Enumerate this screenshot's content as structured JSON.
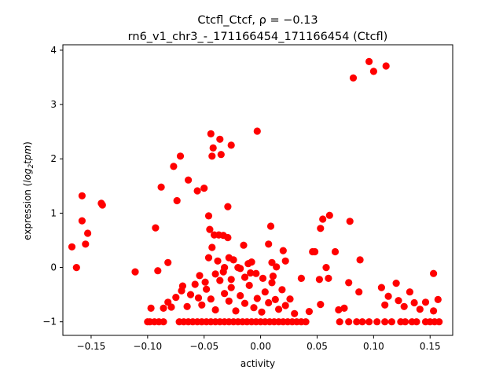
{
  "chart_data": {
    "type": "scatter",
    "title": "Ctcfl_Ctcf, ρ = −0.13",
    "subtitle": "rn6_v1_chr3_-_171166454_171166454 (Ctcfl)",
    "xlabel": "activity",
    "ylabel_prefix": "expression (",
    "ylabel_math_main": "log",
    "ylabel_math_sub": "2",
    "ylabel_math_tail": "tpm",
    "ylabel_suffix": ")",
    "xlim": [
      -0.175,
      0.17
    ],
    "ylim": [
      -1.25,
      4.1
    ],
    "xticks": [
      -0.15,
      -0.1,
      -0.05,
      0.0,
      0.05,
      0.1,
      0.15
    ],
    "xtick_labels": [
      "−0.15",
      "−0.10",
      "−0.05",
      "0.00",
      "0.05",
      "0.10",
      "0.15"
    ],
    "yticks": [
      -1,
      0,
      1,
      2,
      3,
      4
    ],
    "ytick_labels": [
      "−1",
      "0",
      "1",
      "2",
      "3",
      "4"
    ],
    "grid": false,
    "marker_color": "#ff0000",
    "points": [
      [
        -0.167,
        0.38
      ],
      [
        -0.163,
        0.0
      ],
      [
        -0.158,
        1.32
      ],
      [
        -0.158,
        0.86
      ],
      [
        -0.155,
        0.43
      ],
      [
        -0.153,
        0.63
      ],
      [
        -0.141,
        1.18
      ],
      [
        -0.14,
        1.15
      ],
      [
        -0.111,
        -0.08
      ],
      [
        -0.1,
        -1.0
      ],
      [
        -0.097,
        -0.75
      ],
      [
        -0.093,
        0.73
      ],
      [
        -0.091,
        -0.06
      ],
      [
        -0.088,
        1.48
      ],
      [
        -0.082,
        0.09
      ],
      [
        -0.077,
        1.86
      ],
      [
        -0.074,
        1.23
      ],
      [
        -0.071,
        2.05
      ],
      [
        -0.064,
        1.61
      ],
      [
        -0.056,
        1.41
      ],
      [
        -0.05,
        1.46
      ],
      [
        -0.046,
        0.95
      ],
      [
        -0.045,
        0.7
      ],
      [
        -0.043,
        2.05
      ],
      [
        -0.042,
        2.2
      ],
      [
        -0.036,
        2.36
      ],
      [
        -0.035,
        2.08
      ],
      [
        -0.044,
        2.46
      ],
      [
        -0.026,
        2.25
      ],
      [
        -0.029,
        1.12
      ],
      [
        -0.003,
        2.51
      ],
      [
        -0.041,
        0.6
      ],
      [
        -0.037,
        0.6
      ],
      [
        -0.033,
        0.59
      ],
      [
        -0.029,
        0.55
      ],
      [
        -0.02,
        0.0
      ],
      [
        -0.015,
        0.41
      ],
      [
        -0.046,
        0.18
      ],
      [
        -0.043,
        0.37
      ],
      [
        -0.038,
        0.12
      ],
      [
        -0.032,
        0.0
      ],
      [
        -0.028,
        0.18
      ],
      [
        -0.024,
        0.14
      ],
      [
        -0.018,
        -0.02
      ],
      [
        -0.011,
        0.07
      ],
      [
        -0.009,
        -0.1
      ],
      [
        -0.008,
        0.1
      ],
      [
        0.007,
        0.43
      ],
      [
        0.009,
        0.76
      ],
      [
        0.01,
        0.09
      ],
      [
        0.014,
        0.01
      ],
      [
        0.02,
        0.31
      ],
      [
        0.022,
        0.12
      ],
      [
        0.046,
        0.29
      ],
      [
        0.048,
        0.29
      ],
      [
        0.053,
        0.72
      ],
      [
        0.055,
        0.89
      ],
      [
        0.061,
        0.96
      ],
      [
        0.066,
        0.29
      ],
      [
        0.088,
        0.14
      ],
      [
        0.058,
        0.0
      ],
      [
        0.06,
        -0.2
      ],
      [
        0.079,
        0.85
      ],
      [
        0.082,
        3.49
      ],
      [
        0.096,
        3.79
      ],
      [
        0.1,
        3.61
      ],
      [
        0.111,
        3.71
      ],
      [
        0.153,
        -0.11
      ],
      [
        -0.098,
        -1.0
      ],
      [
        -0.094,
        -1.0
      ],
      [
        -0.09,
        -1.0
      ],
      [
        -0.086,
        -1.0
      ],
      [
        -0.072,
        -1.0
      ],
      [
        -0.068,
        -1.0
      ],
      [
        -0.064,
        -1.0
      ],
      [
        -0.06,
        -1.0
      ],
      [
        -0.056,
        -1.0
      ],
      [
        -0.052,
        -1.0
      ],
      [
        -0.048,
        -1.0
      ],
      [
        -0.044,
        -1.0
      ],
      [
        -0.04,
        -1.0
      ],
      [
        -0.036,
        -1.0
      ],
      [
        -0.032,
        -1.0
      ],
      [
        -0.028,
        -1.0
      ],
      [
        -0.024,
        -1.0
      ],
      [
        -0.02,
        -1.0
      ],
      [
        -0.016,
        -1.0
      ],
      [
        -0.012,
        -1.0
      ],
      [
        -0.008,
        -1.0
      ],
      [
        -0.004,
        -1.0
      ],
      [
        0.0,
        -1.0
      ],
      [
        0.004,
        -1.0
      ],
      [
        0.008,
        -1.0
      ],
      [
        0.012,
        -1.0
      ],
      [
        0.016,
        -1.0
      ],
      [
        0.02,
        -1.0
      ],
      [
        0.024,
        -1.0
      ],
      [
        0.028,
        -1.0
      ],
      [
        0.032,
        -1.0
      ],
      [
        0.036,
        -1.0
      ],
      [
        0.04,
        -1.0
      ],
      [
        0.07,
        -1.0
      ],
      [
        0.078,
        -1.0
      ],
      [
        0.085,
        -1.0
      ],
      [
        0.09,
        -1.0
      ],
      [
        0.096,
        -1.0
      ],
      [
        0.103,
        -1.0
      ],
      [
        0.11,
        -1.0
      ],
      [
        0.116,
        -1.0
      ],
      [
        0.124,
        -1.0
      ],
      [
        0.128,
        -1.0
      ],
      [
        0.134,
        -1.0
      ],
      [
        0.138,
        -1.0
      ],
      [
        0.146,
        -1.0
      ],
      [
        0.15,
        -1.0
      ],
      [
        0.154,
        -1.0
      ],
      [
        0.158,
        -1.0
      ],
      [
        -0.086,
        -0.75
      ],
      [
        -0.082,
        -0.64
      ],
      [
        -0.079,
        -0.73
      ],
      [
        -0.075,
        -0.55
      ],
      [
        -0.07,
        -0.43
      ],
      [
        -0.065,
        -0.72
      ],
      [
        -0.062,
        -0.5
      ],
      [
        -0.058,
        -0.31
      ],
      [
        -0.055,
        -0.56
      ],
      [
        -0.052,
        -0.69
      ],
      [
        -0.048,
        -0.4
      ],
      [
        -0.044,
        -0.58
      ],
      [
        -0.04,
        -0.78
      ],
      [
        -0.036,
        -0.24
      ],
      [
        -0.032,
        -0.48
      ],
      [
        -0.028,
        -0.62
      ],
      [
        -0.026,
        -0.37
      ],
      [
        -0.022,
        -0.8
      ],
      [
        -0.018,
        -0.52
      ],
      [
        -0.014,
        -0.66
      ],
      [
        -0.01,
        -0.33
      ],
      [
        -0.006,
        -0.74
      ],
      [
        -0.003,
        -0.57
      ],
      [
        0.001,
        -0.82
      ],
      [
        0.004,
        -0.45
      ],
      [
        0.007,
        -0.65
      ],
      [
        0.01,
        -0.28
      ],
      [
        0.013,
        -0.59
      ],
      [
        0.016,
        -0.77
      ],
      [
        0.019,
        -0.41
      ],
      [
        0.022,
        -0.7
      ],
      [
        0.026,
        -0.58
      ],
      [
        0.03,
        -0.85
      ],
      [
        0.036,
        -0.2
      ],
      [
        0.043,
        -0.81
      ],
      [
        0.052,
        -0.22
      ],
      [
        0.053,
        -0.68
      ],
      [
        0.069,
        -0.78
      ],
      [
        0.074,
        -0.75
      ],
      [
        0.078,
        -0.28
      ],
      [
        0.087,
        -0.45
      ],
      [
        0.107,
        -0.37
      ],
      [
        0.11,
        -0.69
      ],
      [
        0.113,
        -0.53
      ],
      [
        0.12,
        -0.29
      ],
      [
        0.122,
        -0.61
      ],
      [
        0.127,
        -0.72
      ],
      [
        0.132,
        -0.45
      ],
      [
        0.136,
        -0.65
      ],
      [
        0.141,
        -0.77
      ],
      [
        0.146,
        -0.64
      ],
      [
        0.153,
        -0.8
      ],
      [
        0.157,
        -0.59
      ],
      [
        -0.069,
        -0.34
      ],
      [
        -0.04,
        -0.12
      ],
      [
        -0.026,
        -0.22
      ],
      [
        -0.014,
        -0.18
      ],
      [
        -0.004,
        -0.11
      ],
      [
        0.002,
        -0.2
      ],
      [
        0.011,
        -0.16
      ],
      [
        -0.054,
        -0.15
      ],
      [
        -0.049,
        -0.27
      ],
      [
        -0.033,
        -0.08
      ]
    ]
  }
}
